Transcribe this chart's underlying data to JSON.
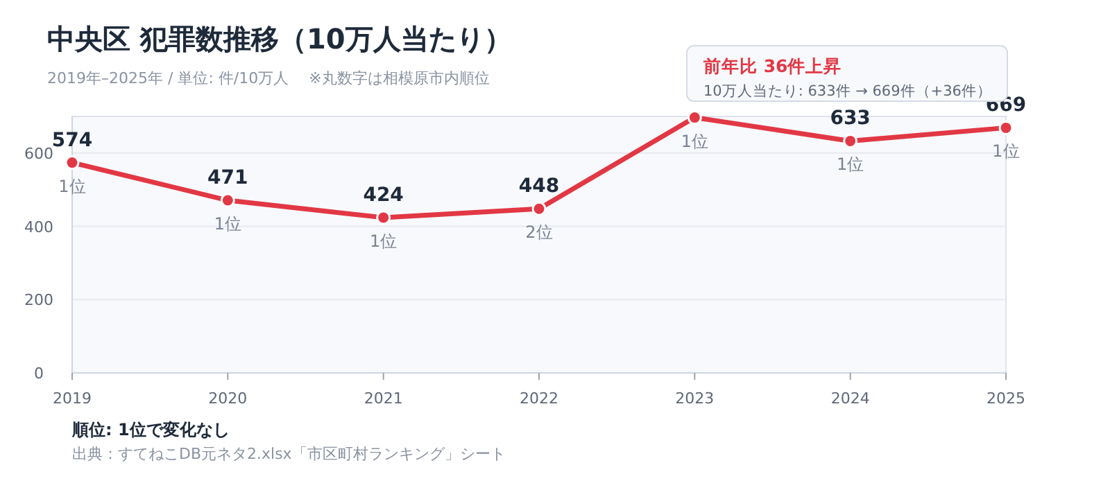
{
  "chart_data": {
    "type": "line",
    "title": "中央区  犯罪数推移（10万人当たり）",
    "subtitle": "2019年–2025年 / 単位: 件/10万人　 ※丸数字は相模原市内順位",
    "categories": [
      "2019",
      "2020",
      "2021",
      "2022",
      "2023",
      "2024",
      "2025"
    ],
    "series": [
      {
        "color": "#e23744",
        "values": [
          574,
          471,
          424,
          448,
          697,
          633,
          669
        ],
        "value_labels": [
          "574",
          "471",
          "424",
          "448",
          null,
          "633",
          "669"
        ]
      }
    ],
    "ylim": [
      0,
      700
    ],
    "yticks": [
      0,
      200,
      400,
      600
    ],
    "grid": "y",
    "marker": "circle",
    "line_style": "solid",
    "annotations": [
      {
        "text": "1位",
        "x": "2019",
        "y": 574
      },
      {
        "text": "1位",
        "x": "2020",
        "y": 471
      },
      {
        "text": "1位",
        "x": "2021",
        "y": 424
      },
      {
        "text": "2位",
        "x": "2022",
        "y": 448
      },
      {
        "text": "1位",
        "x": "2023",
        "y": 697
      },
      {
        "text": "1位",
        "x": "2024",
        "y": 633
      },
      {
        "text": "1位",
        "x": "2025",
        "y": 669
      },
      "前年比  36件上昇",
      "10万人当たり: 633件 → 669件（+36件）",
      "順位: 1位で変化なし",
      "出典：すてねこDB元ネタ2.xlsx「市区町村ランキング」シート"
    ]
  }
}
